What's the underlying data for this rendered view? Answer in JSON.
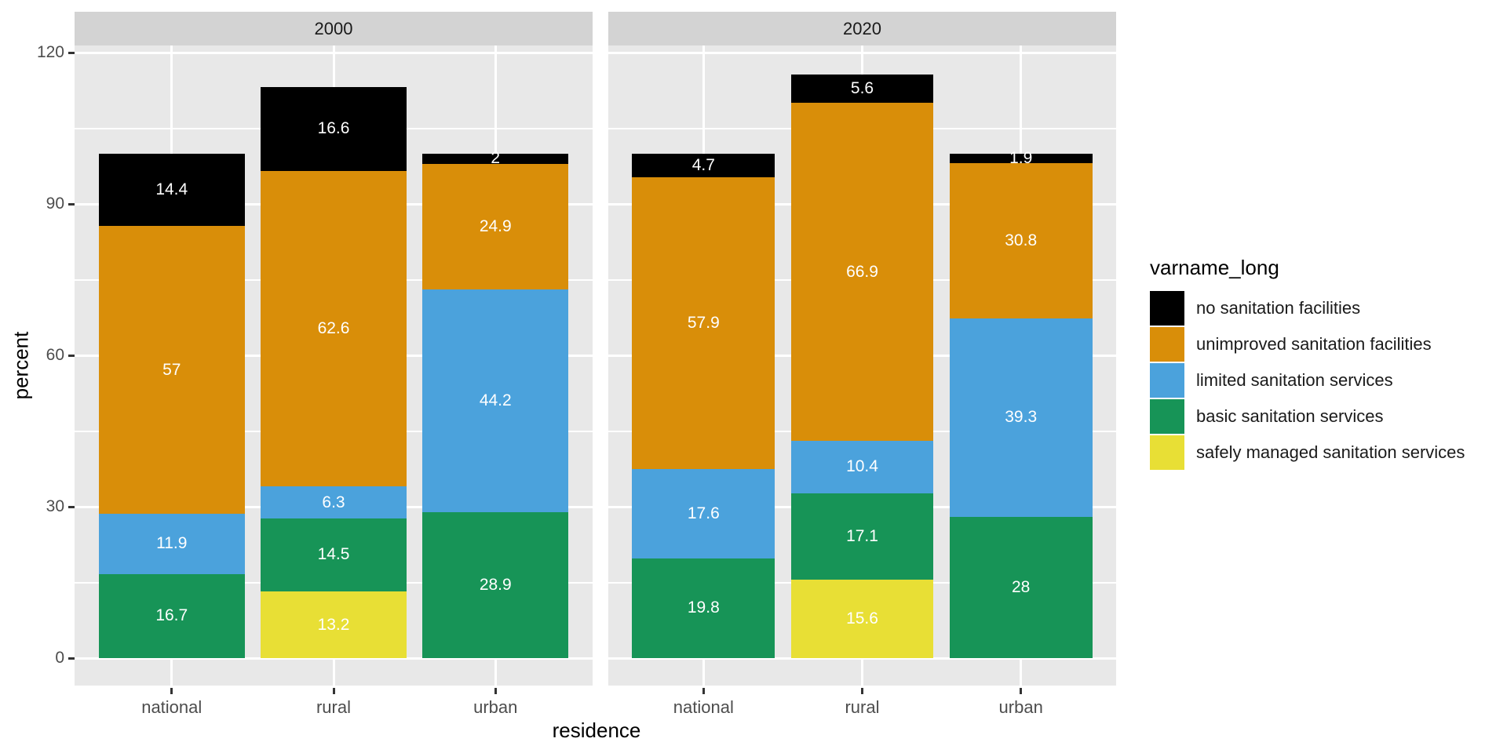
{
  "chart_data": {
    "type": "bar",
    "stacked": true,
    "facet_titles": [
      "2000",
      "2020"
    ],
    "categories": [
      "national",
      "rural",
      "urban"
    ],
    "xlabel": "residence",
    "ylabel": "percent",
    "y_major_ticks": [
      0,
      30,
      60,
      90,
      120
    ],
    "y_minor_ticks": [
      15,
      45,
      75,
      105
    ],
    "ylim": [
      -5.8,
      121.4
    ],
    "legend_title": "varname_long",
    "legend_note": "legend listed top-to-bottom equals reverse of bar stacking order (bars stack bottom-to-top: safely managed, basic, limited, unimproved, none)",
    "series": [
      {
        "name": "safely managed sanitation services",
        "color": "#e8df35",
        "values": {
          "2000": [
            null,
            13.2,
            null
          ],
          "2020": [
            null,
            15.6,
            null
          ]
        }
      },
      {
        "name": "basic sanitation services",
        "color": "#179457",
        "values": {
          "2000": [
            16.7,
            14.5,
            28.9
          ],
          "2020": [
            19.8,
            17.1,
            28
          ]
        }
      },
      {
        "name": "limited sanitation services",
        "color": "#4ba2dc",
        "values": {
          "2000": [
            11.9,
            6.3,
            44.2
          ],
          "2020": [
            17.6,
            10.4,
            39.3
          ]
        }
      },
      {
        "name": "unimproved sanitation facilities",
        "color": "#d98e09",
        "values": {
          "2000": [
            57,
            62.6,
            24.9
          ],
          "2020": [
            57.9,
            66.9,
            30.8
          ]
        }
      },
      {
        "name": "no sanitation facilities",
        "color": "#000000",
        "values": {
          "2000": [
            14.4,
            16.6,
            2
          ],
          "2020": [
            4.7,
            5.6,
            1.9
          ]
        }
      }
    ]
  },
  "style": {
    "page_bg": "#ffffff",
    "panel_bg": "#e8e8e8",
    "strip_bg": "#d3d3d3",
    "grid_color": "#ffffff",
    "axis_text_color": "#4d4d4d",
    "tick_color": "#333333",
    "bar_label_color": "#ffffff"
  }
}
